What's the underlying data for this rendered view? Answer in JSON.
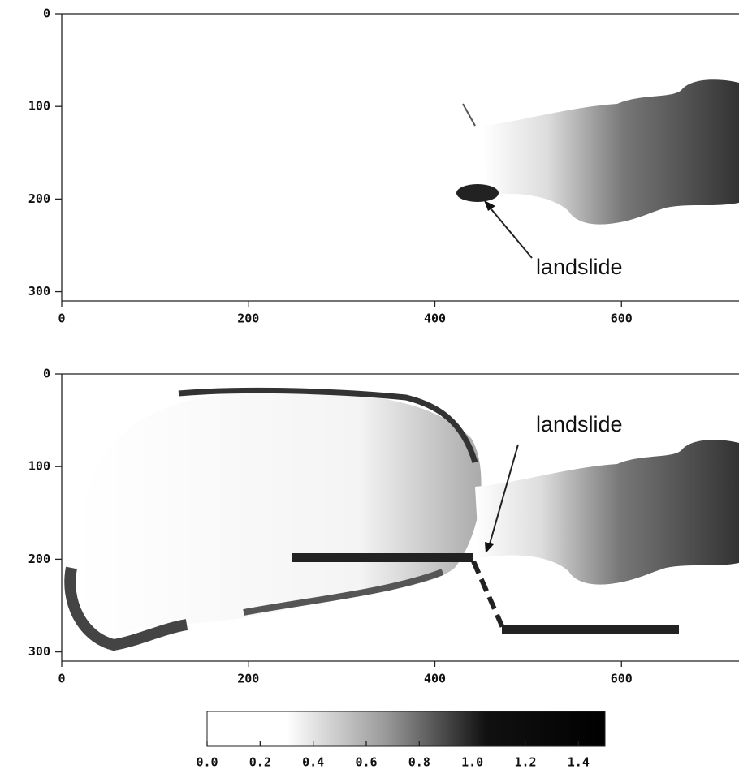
{
  "chart_data": [
    {
      "type": "heatmap",
      "xlim": [
        0,
        726
      ],
      "xticks": [
        0,
        200,
        400,
        600
      ],
      "ylim": [
        0,
        310
      ],
      "yticks": [
        0,
        100,
        200,
        300
      ],
      "annotations": [
        "landslide"
      ]
    },
    {
      "type": "heatmap",
      "xlim": [
        0,
        726
      ],
      "xticks": [
        0,
        200,
        400,
        600
      ],
      "ylim": [
        0,
        310
      ],
      "yticks": [
        0,
        100,
        200,
        300
      ],
      "annotations": [
        "landslide"
      ]
    },
    {
      "type": "colorbar",
      "xlim": [
        0,
        1.5
      ],
      "xticks": [
        {
          "value": 0,
          "label": "0.0"
        },
        {
          "value": 0.2,
          "label": "0.2"
        },
        {
          "value": 0.4,
          "label": "0.4"
        },
        {
          "value": 0.6,
          "label": "0.6"
        },
        {
          "value": 0.8,
          "label": "0.8"
        },
        {
          "value": 1.0,
          "label": "1.0"
        },
        {
          "value": 1.2,
          "label": "1.2"
        },
        {
          "value": 1.4,
          "label": "1.4"
        }
      ]
    }
  ]
}
